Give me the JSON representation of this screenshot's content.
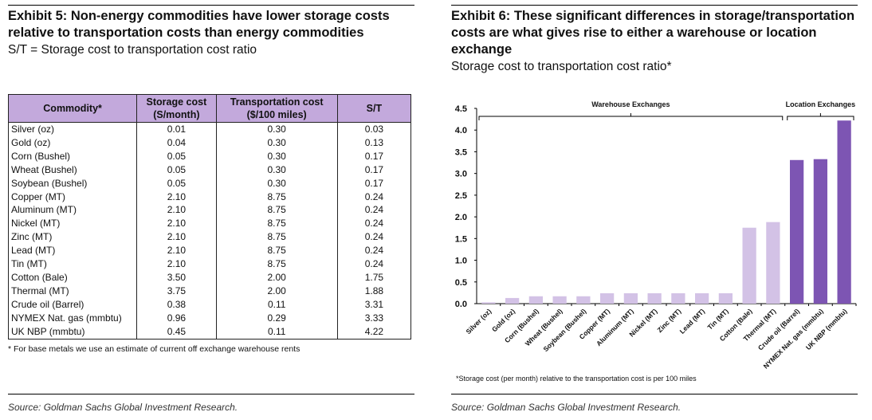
{
  "left": {
    "title": "Exhibit 5: Non-energy commodities have lower storage costs relative to transportation costs than energy commodities",
    "subtitle": "S/T = Storage cost to transportation cost ratio",
    "headers": [
      "Commodity*",
      "Storage cost (S/month)",
      "Transportation cost ($/100 miles)",
      "S/T"
    ],
    "rows": [
      [
        "Silver (oz)",
        "0.01",
        "0.30",
        "0.03"
      ],
      [
        "Gold (oz)",
        "0.04",
        "0.30",
        "0.13"
      ],
      [
        "Corn (Bushel)",
        "0.05",
        "0.30",
        "0.17"
      ],
      [
        "Wheat (Bushel)",
        "0.05",
        "0.30",
        "0.17"
      ],
      [
        "Soybean (Bushel)",
        "0.05",
        "0.30",
        "0.17"
      ],
      [
        "Copper (MT)",
        "2.10",
        "8.75",
        "0.24"
      ],
      [
        "Aluminum (MT)",
        "2.10",
        "8.75",
        "0.24"
      ],
      [
        "Nickel (MT)",
        "2.10",
        "8.75",
        "0.24"
      ],
      [
        "Zinc (MT)",
        "2.10",
        "8.75",
        "0.24"
      ],
      [
        "Lead (MT)",
        "2.10",
        "8.75",
        "0.24"
      ],
      [
        "Tin (MT)",
        "2.10",
        "8.75",
        "0.24"
      ],
      [
        "Cotton (Bale)",
        "3.50",
        "2.00",
        "1.75"
      ],
      [
        "Thermal (MT)",
        "3.75",
        "2.00",
        "1.88"
      ],
      [
        "Crude oil (Barrel)",
        "0.38",
        "0.11",
        "3.31"
      ],
      [
        "NYMEX Nat. gas (mmbtu)",
        "0.96",
        "0.29",
        "3.33"
      ],
      [
        "UK NBP (mmbtu)",
        "0.45",
        "0.11",
        "4.22"
      ]
    ],
    "footnote": "* For base metals we use an estimate of current off exchange warehouse rents",
    "source": "Source: Goldman Sachs Global Investment Research."
  },
  "right": {
    "title": "Exhibit 6: These significant differences in storage/transportation costs are what gives rise to either a warehouse or location exchange",
    "subtitle": "Storage cost to transportation cost ratio*",
    "footnote": "*Storage cost (per month) relative to the transportation cost is per 100 miles",
    "source": "Source: Goldman Sachs Global Investment Research."
  },
  "chart_data": {
    "type": "bar",
    "title": "",
    "xlabel": "",
    "ylabel": "",
    "ylim": [
      0,
      4.5
    ],
    "yticks": [
      "0.0",
      "0.5",
      "1.0",
      "1.5",
      "2.0",
      "2.5",
      "3.0",
      "3.5",
      "4.0",
      "4.5"
    ],
    "categories": [
      "Silver (oz)",
      "Gold (oz)",
      "Corn (Bushel)",
      "Wheat (Bushel)",
      "Soybean (Bushel)",
      "Copper (MT)",
      "Aluminum (MT)",
      "Nickel (MT)",
      "Zinc (MT)",
      "Lead (MT)",
      "Tin (MT)",
      "Cotton (Bale)",
      "Thermal (MT)",
      "Crude oil (Barrel)",
      "NYMEX Nat. gas (mmbtu)",
      "UK NBP (mmbtu)"
    ],
    "values": [
      0.03,
      0.13,
      0.17,
      0.17,
      0.17,
      0.24,
      0.24,
      0.24,
      0.24,
      0.24,
      0.24,
      1.75,
      1.88,
      3.31,
      3.33,
      4.22
    ],
    "groups": [
      {
        "label": "Warehouse Exchanges",
        "from": 0,
        "to": 12,
        "color": "#d3c2e6"
      },
      {
        "label": "Location Exchanges",
        "from": 13,
        "to": 15,
        "color": "#7d55b3"
      }
    ],
    "grid": false
  }
}
